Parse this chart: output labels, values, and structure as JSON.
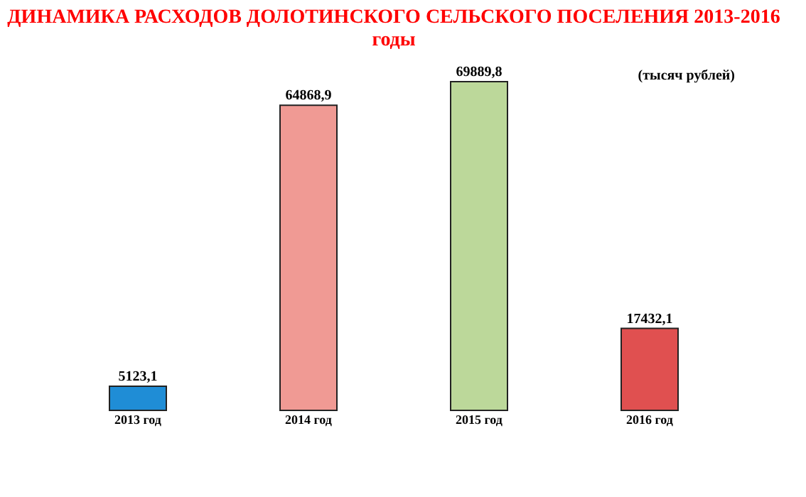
{
  "chart_data": {
    "type": "bar",
    "title": "ДИНАМИКА РАСХОДОВ ДОЛОТИНСКОГО СЕЛЬСКОГО ПОСЕЛЕНИЯ 2013-2016 годы",
    "categories": [
      "2013 год",
      "2014 год",
      "2015 год",
      "2016 год"
    ],
    "values": [
      5123.1,
      64868.9,
      69889.8,
      17432.1
    ],
    "colors": [
      "#1f8dd6",
      "#f09a94",
      "#bcd89a",
      "#e05050"
    ],
    "value_labels": [
      "5123,1",
      "64868,9",
      "69889,8",
      "17432,1"
    ],
    "annotations": [
      "(тысяч рублей)"
    ],
    "grid": false,
    "legend": false
  }
}
